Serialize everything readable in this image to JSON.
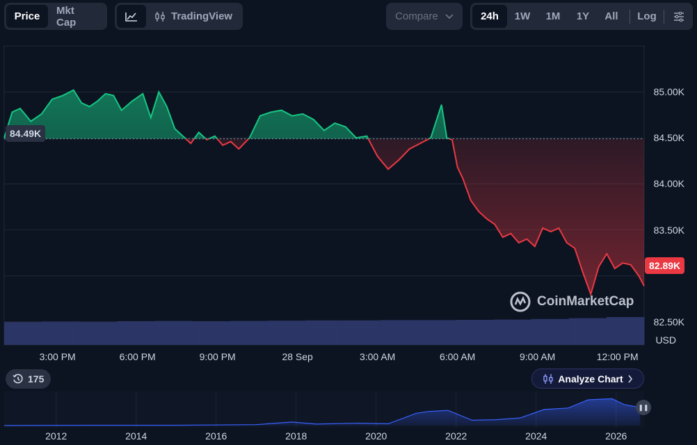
{
  "toolbar": {
    "metric_tabs": [
      {
        "label": "Price",
        "active": true
      },
      {
        "label": "Mkt Cap",
        "active": false
      }
    ],
    "chart_modes": [
      {
        "icon": "line-chart-icon",
        "label": "",
        "active": true
      },
      {
        "icon": "candlestick-icon",
        "label": "TradingView",
        "active": false
      }
    ],
    "compare_label": "Compare",
    "ranges": [
      {
        "label": "24h",
        "active": true
      },
      {
        "label": "1W",
        "active": false
      },
      {
        "label": "1M",
        "active": false
      },
      {
        "label": "1Y",
        "active": false
      },
      {
        "label": "All",
        "active": false
      }
    ],
    "log_label": "Log",
    "settings_icon": "sliders-icon"
  },
  "colors": {
    "background": "#0d1421",
    "up": "#16c784",
    "down": "#ea3943",
    "volume": "#2b3566",
    "navigator": "#3861fb"
  },
  "chart_data": {
    "type": "line",
    "title": "",
    "currency_label": "USD",
    "reference_value": 84.49,
    "reference_label": "84.49K",
    "last_value": 82.89,
    "last_label": "82.89K",
    "y_ticks": [
      "85.00K",
      "84.50K",
      "84.00K",
      "83.50K",
      "82.50K"
    ],
    "y_tick_values": [
      85.0,
      84.5,
      84.0,
      83.5,
      82.5
    ],
    "ylim": [
      82.25,
      85.5
    ],
    "x_ticks": [
      "3:00 PM",
      "6:00 PM",
      "9:00 PM",
      "28 Sep",
      "3:00 AM",
      "6:00 AM",
      "9:00 AM",
      "12:00 PM"
    ],
    "x_tick_hours": [
      2,
      5,
      8,
      11,
      14,
      17,
      20,
      23
    ],
    "xlim": [
      0,
      24
    ],
    "series": [
      {
        "x": [
          0,
          0.3,
          0.6,
          1.0,
          1.4,
          1.8,
          2.2,
          2.6,
          2.9,
          3.2,
          3.5,
          3.8,
          4.1,
          4.4,
          4.8,
          5.2,
          5.5,
          5.8,
          6.1,
          6.4,
          6.7,
          7.0,
          7.3,
          7.6,
          7.9,
          8.2,
          8.5,
          8.8,
          9.2,
          9.6,
          10.0,
          10.4,
          10.8,
          11.2,
          11.6,
          12.0,
          12.4,
          12.8,
          13.2,
          13.6,
          14.0,
          14.4,
          14.8,
          15.2,
          15.6,
          16.0,
          16.4,
          16.6,
          16.8,
          17.0,
          17.2,
          17.5,
          17.8,
          18.1,
          18.4,
          18.7,
          19.0,
          19.3,
          19.6,
          19.9,
          20.2,
          20.5,
          20.8,
          21.1,
          21.4,
          21.7,
          22.0,
          22.3,
          22.6,
          22.9,
          23.2,
          23.5,
          23.8,
          24.0
        ],
        "values": [
          84.5,
          84.78,
          84.82,
          84.68,
          84.76,
          84.92,
          84.96,
          85.02,
          84.88,
          84.84,
          84.9,
          84.98,
          84.96,
          84.8,
          84.9,
          84.98,
          84.72,
          85.0,
          84.84,
          84.6,
          84.52,
          84.44,
          84.56,
          84.48,
          84.52,
          84.42,
          84.46,
          84.38,
          84.5,
          84.74,
          84.78,
          84.8,
          84.74,
          84.76,
          84.7,
          84.58,
          84.66,
          84.62,
          84.5,
          84.52,
          84.3,
          84.16,
          84.26,
          84.38,
          84.44,
          84.5,
          84.86,
          84.5,
          84.48,
          84.18,
          84.06,
          83.82,
          83.7,
          83.62,
          83.56,
          83.42,
          83.46,
          83.36,
          83.4,
          83.32,
          83.52,
          83.48,
          83.52,
          83.36,
          83.3,
          83.04,
          82.8,
          83.1,
          83.24,
          83.08,
          83.14,
          83.12,
          83.0,
          82.89
        ]
      }
    ],
    "volume_relative": [
      0.82,
      0.84,
      0.83,
      0.85,
      0.86,
      0.85,
      0.86,
      0.87,
      0.88,
      0.88,
      0.89,
      0.89,
      0.9,
      0.91,
      0.93,
      0.96,
      1.0
    ]
  },
  "navigator": {
    "x_labels": [
      "2012",
      "2014",
      "2016",
      "2018",
      "2020",
      "2022",
      "2024",
      "2026"
    ],
    "x_label_years": [
      2012,
      2014,
      2016,
      2018,
      2020,
      2022,
      2024,
      2026
    ],
    "year_range": [
      2010.7,
      2026.7
    ],
    "history_years": [
      2013,
      2015,
      2017,
      2017.9,
      2018.5,
      2019.5,
      2020.3,
      2021,
      2021.3,
      2021.8,
      2022.4,
      2023,
      2023.6,
      2024.2,
      2024.8,
      2025.3,
      2025.9,
      2026.2,
      2026.6
    ],
    "history_relative": [
      0.01,
      0.01,
      0.03,
      0.12,
      0.05,
      0.08,
      0.06,
      0.42,
      0.48,
      0.52,
      0.18,
      0.2,
      0.26,
      0.55,
      0.6,
      0.88,
      0.92,
      0.72,
      0.62
    ]
  },
  "counter": {
    "icon": "history-icon",
    "value": "175"
  },
  "analyze_button": {
    "icon": "candlestick-icon",
    "label": "Analyze Chart",
    "chevron": "chevron-right-icon"
  },
  "watermark": {
    "icon": "coinmarketcap-logo-icon",
    "text": "CoinMarketCap"
  }
}
